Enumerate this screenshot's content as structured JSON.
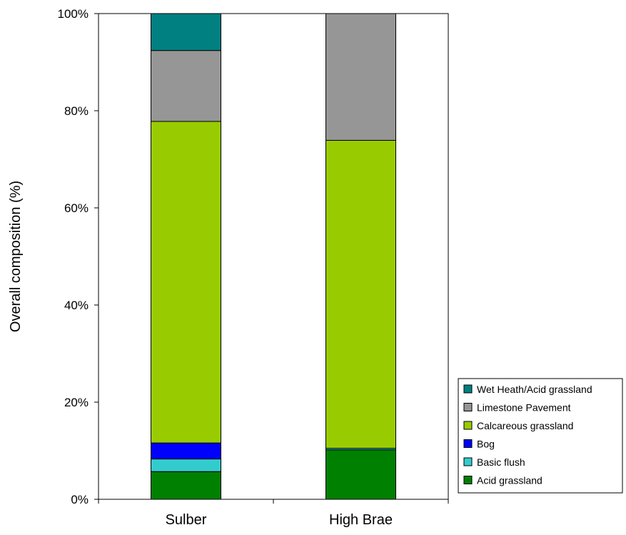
{
  "chart_data": {
    "type": "bar",
    "stacked": true,
    "percent": true,
    "categories": [
      "Sulber",
      "High Brae"
    ],
    "ylabel": "Overall composition (%)",
    "ylim": [
      0,
      100
    ],
    "yticks": [
      "0%",
      "20%",
      "40%",
      "60%",
      "80%",
      "100%"
    ],
    "grid": false,
    "legend_position": "bottom-right",
    "series": [
      {
        "name": "Acid grassland",
        "color": "#008000",
        "values": [
          5.7,
          10.2
        ]
      },
      {
        "name": "Basic flush",
        "color": "#33CCCC",
        "values": [
          2.6,
          0.3
        ]
      },
      {
        "name": "Bog",
        "color": "#0000FF",
        "values": [
          3.3,
          0.0
        ]
      },
      {
        "name": "Calcareous grassland",
        "color": "#99CC00",
        "values": [
          66.2,
          63.4
        ]
      },
      {
        "name": "Limestone Pavement",
        "color": "#969696",
        "values": [
          14.6,
          26.1
        ]
      },
      {
        "name": "Wet Heath/Acid grassland",
        "color": "#008080",
        "values": [
          7.6,
          0.0
        ]
      }
    ]
  }
}
